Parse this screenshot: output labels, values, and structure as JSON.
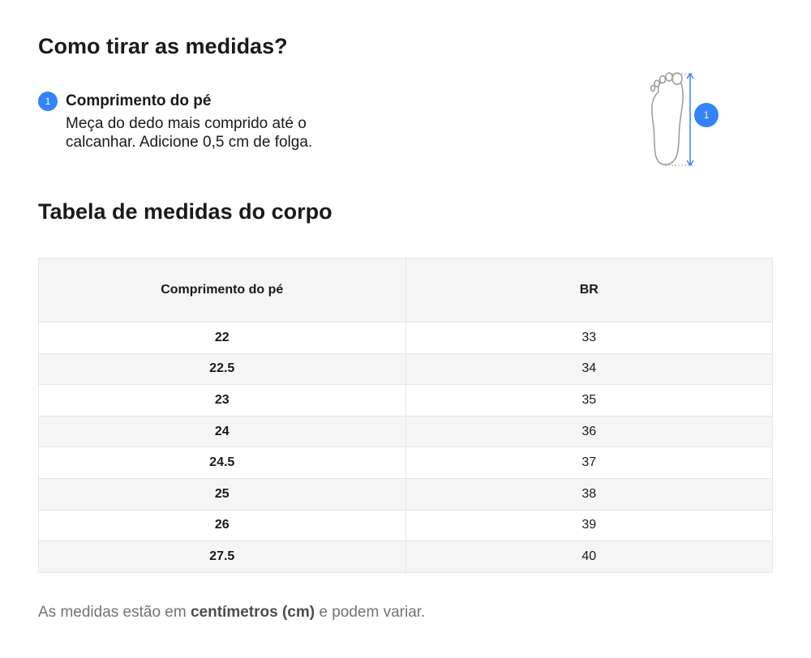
{
  "guide": {
    "title": "Como tirar as medidas?",
    "step": {
      "number": "1",
      "title": "Comprimento do pé",
      "text": "Meça do dedo mais comprido até o calcanhar. Adicione 0,5 cm de folga."
    },
    "figure_label": "1"
  },
  "table": {
    "title": "Tabela de medidas do corpo",
    "headers": [
      "Comprimento do pé",
      "BR"
    ],
    "rows": [
      [
        "22",
        "33"
      ],
      [
        "22.5",
        "34"
      ],
      [
        "23",
        "35"
      ],
      [
        "24",
        "36"
      ],
      [
        "24.5",
        "37"
      ],
      [
        "25",
        "38"
      ],
      [
        "26",
        "39"
      ],
      [
        "27.5",
        "40"
      ]
    ]
  },
  "footer": {
    "before": "As medidas estão em ",
    "bold": "centímetros (cm)",
    "after": " e podem variar."
  }
}
